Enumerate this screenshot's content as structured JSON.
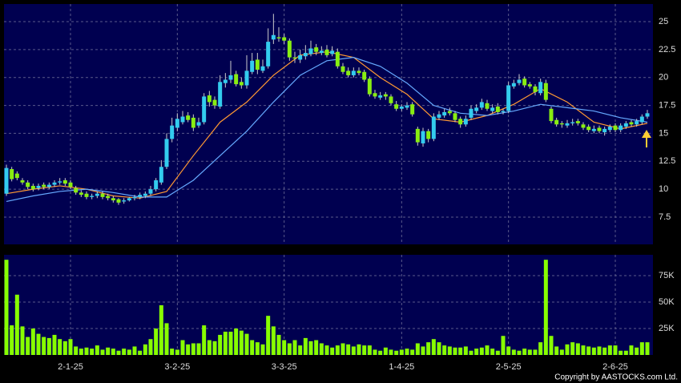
{
  "chart_data": {
    "type": "candlestick",
    "up_color": "#33ccee",
    "down_color": "#88ee11",
    "volume_color": "#88ff00",
    "ma_series": [
      {
        "color": "#ff9933",
        "x": [
          0,
          5,
          10,
          15,
          20,
          25,
          30,
          35,
          40,
          45,
          50,
          55,
          60,
          65,
          70,
          75,
          80,
          85,
          90,
          95,
          100,
          105,
          110,
          115,
          120
        ],
        "values": [
          9.6,
          10.0,
          10.3,
          10.0,
          9.4,
          9.2,
          9.8,
          13.0,
          16.0,
          17.8,
          20.2,
          22.0,
          22.3,
          21.8,
          20.0,
          18.5,
          16.3,
          16.0,
          16.6,
          17.6,
          19.0,
          17.8,
          16.0,
          15.4,
          15.9
        ]
      },
      {
        "color": "#66aaff",
        "x": [
          0,
          5,
          10,
          15,
          20,
          25,
          30,
          35,
          40,
          45,
          50,
          55,
          60,
          65,
          70,
          75,
          80,
          85,
          90,
          95,
          100,
          105,
          110,
          115,
          120
        ],
        "values": [
          8.9,
          9.4,
          9.8,
          10.0,
          9.7,
          9.3,
          9.3,
          10.8,
          13.0,
          15.2,
          17.8,
          20.2,
          21.5,
          21.8,
          21.0,
          19.5,
          17.5,
          16.8,
          16.6,
          17.0,
          17.6,
          17.3,
          17.0,
          16.4,
          16.0
        ]
      }
    ],
    "categories": [
      null,
      null,
      null,
      null,
      null,
      null,
      null,
      null,
      null,
      null,
      null,
      null,
      "2-1-25",
      null,
      null,
      null,
      null,
      null,
      null,
      null,
      null,
      null,
      null,
      null,
      null,
      null,
      null,
      null,
      null,
      null,
      null,
      null,
      "3-2-25",
      null,
      null,
      null,
      null,
      null,
      null,
      null,
      null,
      null,
      null,
      null,
      null,
      null,
      null,
      null,
      null,
      null,
      null,
      null,
      "3-3-25",
      null,
      null,
      null,
      null,
      null,
      null,
      null,
      null,
      null,
      null,
      null,
      null,
      null,
      null,
      null,
      null,
      null,
      null,
      null,
      null,
      null,
      "1-4-25",
      null,
      null,
      null,
      null,
      null,
      null,
      null,
      null,
      null,
      null,
      null,
      null,
      null,
      null,
      null,
      null,
      null,
      null,
      null,
      "2-5-25",
      null,
      null,
      null,
      null,
      null,
      null,
      null,
      null,
      null,
      null,
      null,
      null,
      null,
      null,
      null,
      null,
      null,
      null,
      null,
      "2-6-25",
      null,
      null,
      null,
      null,
      null,
      null
    ],
    "open": [
      9.6,
      11.8,
      11.4,
      10.8,
      10.6,
      10.3,
      10.1,
      10.4,
      10.2,
      10.4,
      10.6,
      10.8,
      10.6,
      10.1,
      9.7,
      9.6,
      9.3,
      9.4,
      9.6,
      9.4,
      9.2,
      9.1,
      8.9,
      9.0,
      9.2,
      9.3,
      9.4,
      9.6,
      10.0,
      10.6,
      12.0,
      14.5,
      15.5,
      16.0,
      16.6,
      16.4,
      15.7,
      16.0,
      18.4,
      18.0,
      17.4,
      19.5,
      19.8,
      20.3,
      19.6,
      19.3,
      20.5,
      21.6,
      20.6,
      21.0,
      23.4,
      23.6,
      23.6,
      23.3,
      21.8,
      21.6,
      21.9,
      22.1,
      22.7,
      22.2,
      22.5,
      22.1,
      22.3,
      21.0,
      20.6,
      20.2,
      20.6,
      20.5,
      19.9,
      18.6,
      18.2,
      18.5,
      18.3,
      17.6,
      17.2,
      17.3,
      17.6,
      15.4,
      14.1,
      15.2,
      14.5,
      16.4,
      16.6,
      17.0,
      16.8,
      16.3,
      15.8,
      16.4,
      17.0,
      17.3,
      17.7,
      17.0,
      17.4,
      16.9,
      17.0,
      19.2,
      19.5,
      19.9,
      19.4,
      19.2,
      18.6,
      19.5,
      17.2,
      16.2,
      15.9,
      15.7,
      15.9,
      16.1,
      15.8,
      15.6,
      15.2,
      15.5,
      15.1,
      15.3,
      15.7,
      15.3,
      15.6,
      16.0,
      15.8,
      16.0,
      16.5
    ],
    "high": [
      12.2,
      12.0,
      11.6,
      11.0,
      10.8,
      10.5,
      10.5,
      10.6,
      10.6,
      10.8,
      11.0,
      11.0,
      10.8,
      10.3,
      9.9,
      9.8,
      9.6,
      9.8,
      9.8,
      9.6,
      9.4,
      9.2,
      9.2,
      9.3,
      9.5,
      9.7,
      9.8,
      10.3,
      11.0,
      12.6,
      15.0,
      16.4,
      16.8,
      17.0,
      16.9,
      16.7,
      16.4,
      18.6,
      18.8,
      18.3,
      20.2,
      20.4,
      21.5,
      20.6,
      20.0,
      22.0,
      22.2,
      22.2,
      21.6,
      24.4,
      25.7,
      24.5,
      23.9,
      23.5,
      22.3,
      22.5,
      22.9,
      23.3,
      23.0,
      22.8,
      22.9,
      22.8,
      22.6,
      21.3,
      20.9,
      20.9,
      20.9,
      20.7,
      20.1,
      18.9,
      18.7,
      18.7,
      18.5,
      17.9,
      17.6,
      17.8,
      17.8,
      15.6,
      15.5,
      15.4,
      16.8,
      17.0,
      17.2,
      17.3,
      17.0,
      16.5,
      16.6,
      17.5,
      17.6,
      18.1,
      18.0,
      17.6,
      17.7,
      17.2,
      19.6,
      19.8,
      20.3,
      20.1,
      19.6,
      19.4,
      19.9,
      19.8,
      17.4,
      16.4,
      16.1,
      16.2,
      16.3,
      16.3,
      16.0,
      15.8,
      15.7,
      15.7,
      15.6,
      15.8,
      15.9,
      15.9,
      16.1,
      16.2,
      16.3,
      16.7,
      17.1
    ],
    "low": [
      9.4,
      10.7,
      10.8,
      10.4,
      10.0,
      9.8,
      9.9,
      10.0,
      10.0,
      10.2,
      10.4,
      10.3,
      10.0,
      9.5,
      9.3,
      9.1,
      9.1,
      9.2,
      9.1,
      9.0,
      8.8,
      8.6,
      8.7,
      8.9,
      9.0,
      9.1,
      9.2,
      9.4,
      9.8,
      10.4,
      11.8,
      14.2,
      15.2,
      15.8,
      16.0,
      15.2,
      15.5,
      15.8,
      17.4,
      17.2,
      17.2,
      19.1,
      19.5,
      19.2,
      19.0,
      19.0,
      20.3,
      20.3,
      20.4,
      20.8,
      23.0,
      23.2,
      23.0,
      21.5,
      21.3,
      21.3,
      21.6,
      21.9,
      22.0,
      22.0,
      21.8,
      21.9,
      20.8,
      20.3,
      20.0,
      20.0,
      20.2,
      19.6,
      18.3,
      18.1,
      18.0,
      18.0,
      17.5,
      17.0,
      17.0,
      17.1,
      16.5,
      13.9,
      13.8,
      14.2,
      14.3,
      16.2,
      16.4,
      16.6,
      16.0,
      15.5,
      15.6,
      16.2,
      16.8,
      17.1,
      17.0,
      16.8,
      16.7,
      16.7,
      16.8,
      19.0,
      19.3,
      19.1,
      19.0,
      18.4,
      18.4,
      17.8,
      15.9,
      15.6,
      15.5,
      15.5,
      15.7,
      15.7,
      15.3,
      15.1,
      15.0,
      15.0,
      14.8,
      15.1,
      15.1,
      15.1,
      15.4,
      15.6,
      15.6,
      15.8,
      16.3
    ],
    "close": [
      11.9,
      10.9,
      11.0,
      10.6,
      10.2,
      10.0,
      10.3,
      10.2,
      10.4,
      10.6,
      10.7,
      10.5,
      10.2,
      9.7,
      9.5,
      9.3,
      9.4,
      9.6,
      9.3,
      9.2,
      9.0,
      8.8,
      9.0,
      9.2,
      9.3,
      9.5,
      9.6,
      10.0,
      10.8,
      12.0,
      14.5,
      15.7,
      16.3,
      16.5,
      16.2,
      15.5,
      16.0,
      18.3,
      17.8,
      17.5,
      19.6,
      19.8,
      20.2,
      19.4,
      19.3,
      20.6,
      21.5,
      20.7,
      21.0,
      23.2,
      23.8,
      23.5,
      23.3,
      21.8,
      21.7,
      22.0,
      22.2,
      22.6,
      22.3,
      22.4,
      22.0,
      22.4,
      21.0,
      20.5,
      20.2,
      20.6,
      20.4,
      19.8,
      18.5,
      18.3,
      18.4,
      18.3,
      17.7,
      17.2,
      17.4,
      17.5,
      16.7,
      14.2,
      15.2,
      14.5,
      16.5,
      16.7,
      16.9,
      16.8,
      16.2,
      15.8,
      16.3,
      17.2,
      17.3,
      17.8,
      17.2,
      17.3,
      16.9,
      17.0,
      19.3,
      19.5,
      19.8,
      19.3,
      19.2,
      18.7,
      19.6,
      18.0,
      16.1,
      15.8,
      15.8,
      15.9,
      16.0,
      15.9,
      15.5,
      15.3,
      15.4,
      15.2,
      15.4,
      15.6,
      15.3,
      15.7,
      15.9,
      15.8,
      16.1,
      16.5,
      16.8
    ],
    "volume": [
      90000,
      28000,
      57000,
      27000,
      17000,
      25000,
      20000,
      17000,
      16000,
      19000,
      15000,
      13000,
      15000,
      8000,
      6000,
      7000,
      6000,
      9000,
      5000,
      7000,
      6000,
      4000,
      6000,
      5000,
      8000,
      4000,
      10000,
      15000,
      25000,
      47000,
      30000,
      6000,
      5000,
      14000,
      10000,
      11000,
      11000,
      28000,
      14000,
      13000,
      19000,
      22000,
      22000,
      25000,
      23000,
      20000,
      14000,
      12000,
      10000,
      37000,
      27000,
      19000,
      14000,
      11000,
      14000,
      9000,
      16000,
      13000,
      14000,
      11000,
      9000,
      7000,
      9000,
      11000,
      10000,
      8000,
      10000,
      9000,
      9000,
      5000,
      4000,
      7000,
      5000,
      4000,
      5000,
      6000,
      5000,
      11000,
      8000,
      12000,
      15000,
      12000,
      9000,
      8000,
      7000,
      7000,
      8000,
      4000,
      6000,
      7000,
      9000,
      6000,
      4000,
      18000,
      8000,
      5000,
      4000,
      6000,
      5000,
      5000,
      12000,
      90000,
      18000,
      8000,
      5000,
      10000,
      12000,
      11000,
      9000,
      8000,
      7000,
      8000,
      7000,
      9000,
      9000,
      4000,
      4000,
      9000,
      7000,
      12000,
      12000
    ],
    "ylim": [
      5.06,
      26.58
    ],
    "yticks": [
      7.5,
      10,
      12.5,
      15,
      17.5,
      20,
      22.5,
      25
    ],
    "volume_lim": [
      0,
      94700
    ],
    "volume_ticks": [
      {
        "value": 25000,
        "label": "25K"
      },
      {
        "value": 50000,
        "label": "50K"
      },
      {
        "value": 75000,
        "label": "75K"
      }
    ],
    "grid": true,
    "copyright": "Copyright by AASTOCKS.com Ltd."
  }
}
